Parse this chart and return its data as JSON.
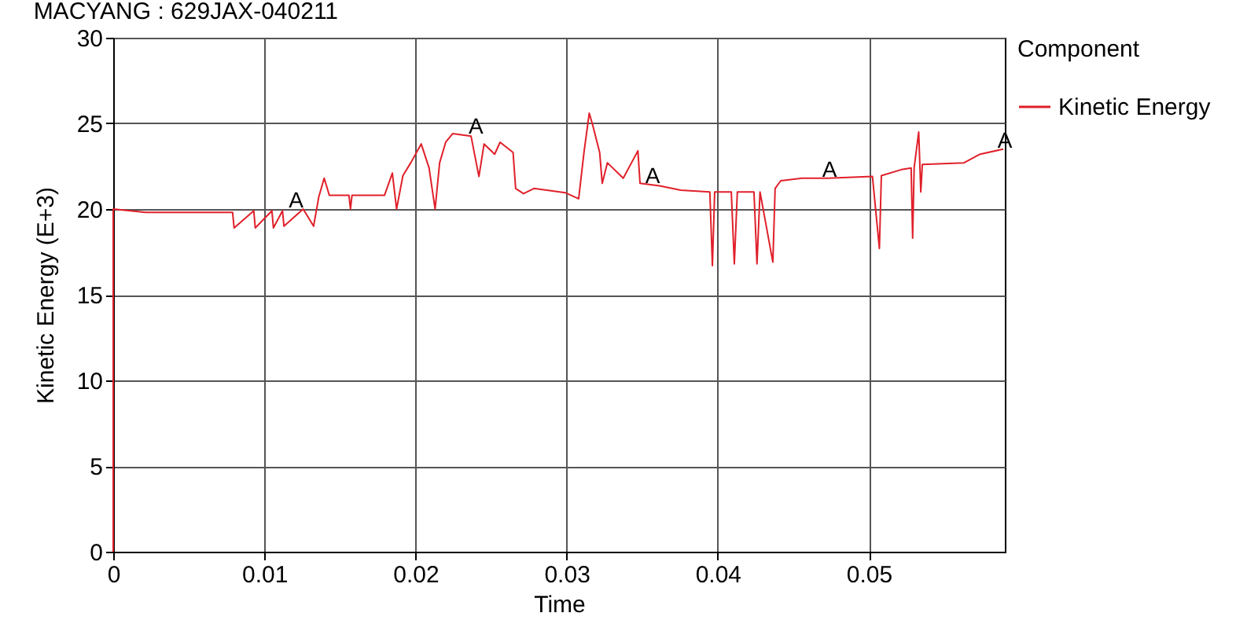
{
  "chart_data": {
    "type": "line",
    "title": "MACYANG : 629JAX-040211",
    "xlabel": "Time",
    "ylabel": "Kinetic Energy (E+3)",
    "legend_title": "Component",
    "legend": "top right",
    "xlim": [
      0,
      0.059
    ],
    "xticks": [
      0,
      0.01,
      0.02,
      0.03,
      0.04,
      0.05
    ],
    "ylim": [
      0,
      30
    ],
    "yticks": [
      0,
      5,
      10,
      15,
      20,
      25,
      30
    ],
    "grid": true,
    "line_style": "solid",
    "series": [
      {
        "name": "Kinetic Energy",
        "color": "#e0202a",
        "x": [
          0,
          0,
          0.00215,
          0.0079,
          0.008,
          0.0093,
          0.0094,
          0.0105,
          0.0106,
          0.0112,
          0.0113,
          0.01257,
          0.01326,
          0.0136,
          0.01396,
          0.0143,
          0.0156,
          0.0157,
          0.0158,
          0.01795,
          0.01847,
          0.01875,
          0.01917,
          0.01969,
          0.02038,
          0.0209,
          0.0213,
          0.0216,
          0.022,
          0.02246,
          0.02368,
          0.0242,
          0.02454,
          0.02524,
          0.0256,
          0.02646,
          0.02663,
          0.02715,
          0.02784,
          0.02993,
          0.0308,
          0.03115,
          0.0315,
          0.03173,
          0.03219,
          0.03236,
          0.0327,
          0.03375,
          0.03472,
          0.03486,
          0.03617,
          0.03756,
          0.03948,
          0.03965,
          0.0398,
          0.0409,
          0.0411,
          0.0413,
          0.0424,
          0.0426,
          0.0428,
          0.04365,
          0.0438,
          0.04417,
          0.04555,
          0.0473,
          0.05024,
          0.0507,
          0.05083,
          0.05215,
          0.0528,
          0.0529,
          0.053,
          0.0533,
          0.05344,
          0.05354,
          0.0563,
          0.05736,
          0.0589
        ],
        "values": [
          0,
          20,
          19.8,
          19.8,
          18.9,
          19.9,
          18.9,
          19.9,
          18.9,
          19.9,
          19,
          20,
          19,
          20.7,
          21.8,
          20.8,
          20.8,
          20,
          20.8,
          20.8,
          22.1,
          20,
          21.95,
          22.7,
          23.8,
          22.4,
          20,
          22.7,
          23.9,
          24.4,
          24.25,
          21.9,
          23.8,
          23.2,
          23.9,
          23.3,
          21.2,
          20.9,
          21.2,
          20.95,
          20.6,
          23.3,
          25.6,
          24.9,
          23.3,
          21.5,
          22.7,
          21.8,
          23.4,
          21.5,
          21.35,
          21.1,
          21,
          16.7,
          21,
          21,
          16.8,
          21,
          21,
          16.8,
          21,
          16.9,
          21.2,
          21.65,
          21.8,
          21.8,
          21.9,
          17.7,
          21.95,
          22.3,
          22.4,
          18.3,
          22.4,
          24.5,
          21,
          22.6,
          22.7,
          23.2,
          23.5
        ]
      }
    ],
    "annotations": [
      {
        "text": "A",
        "x": 0.0121,
        "y": 20
      },
      {
        "text": "A",
        "x": 0.024,
        "y": 24.3
      },
      {
        "text": "A",
        "x": 0.0357,
        "y": 21.4
      },
      {
        "text": "A",
        "x": 0.0474,
        "y": 21.8
      },
      {
        "text": "A",
        "x": 0.059,
        "y": 23.5
      }
    ]
  }
}
